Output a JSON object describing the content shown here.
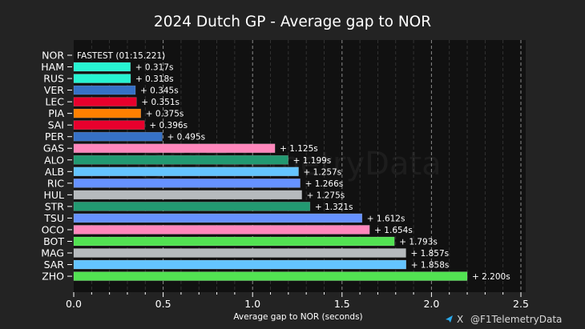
{
  "chart_data": {
    "type": "bar",
    "orientation": "horizontal",
    "title": "2024 Dutch GP - Average gap to NOR",
    "xlabel": "Average gap to NOR (seconds)",
    "ylabel": "",
    "xlim": [
      0,
      2.5
    ],
    "xticks": [
      "0.0",
      "0.5",
      "1.0",
      "1.5",
      "2.0",
      "2.5"
    ],
    "grid": "vertical dashed, major every 0.5, minor every 0.1",
    "legend": "none",
    "fastest": {
      "driver": "NOR",
      "label": "FASTEST (01:15.221)"
    },
    "categories": [
      "NOR",
      "HAM",
      "RUS",
      "VER",
      "LEC",
      "PIA",
      "SAI",
      "PER",
      "GAS",
      "ALO",
      "ALB",
      "RIC",
      "HUL",
      "STR",
      "TSU",
      "OCO",
      "BOT",
      "MAG",
      "SAR",
      "ZHO"
    ],
    "values": [
      0,
      0.317,
      0.318,
      0.345,
      0.351,
      0.375,
      0.396,
      0.495,
      1.125,
      1.199,
      1.257,
      1.266,
      1.275,
      1.321,
      1.612,
      1.654,
      1.793,
      1.857,
      1.858,
      2.2
    ],
    "labels": [
      "FASTEST (01:15.221)",
      "+ 0.317s",
      "+ 0.318s",
      "+ 0.345s",
      "+ 0.351s",
      "+ 0.375s",
      "+ 0.396s",
      "+ 0.495s",
      "+ 1.125s",
      "+ 1.199s",
      "+ 1.257s",
      "+ 1.266s",
      "+ 1.275s",
      "+ 1.321s",
      "+ 1.612s",
      "+ 1.654s",
      "+ 1.793s",
      "+ 1.857s",
      "+ 1.858s",
      "+ 2.200s"
    ],
    "colors": [
      "#FF8000",
      "#27F4D2",
      "#27F4D2",
      "#3671C6",
      "#E8002D",
      "#FF8000",
      "#E8002D",
      "#3671C6",
      "#FF87BC",
      "#229971",
      "#64C4FF",
      "#6692FF",
      "#B6BABD",
      "#229971",
      "#6692FF",
      "#FF87BC",
      "#52E252",
      "#B6BABD",
      "#64C4FF",
      "#52E252"
    ]
  },
  "watermark": "@F1TelemetryData",
  "credit": {
    "handle": "@F1TelemetryData",
    "icons": [
      "telegram-icon",
      "x-icon"
    ],
    "x_glyph": "X"
  },
  "colors": {
    "background": "#232323",
    "plot_background": "#111111"
  }
}
